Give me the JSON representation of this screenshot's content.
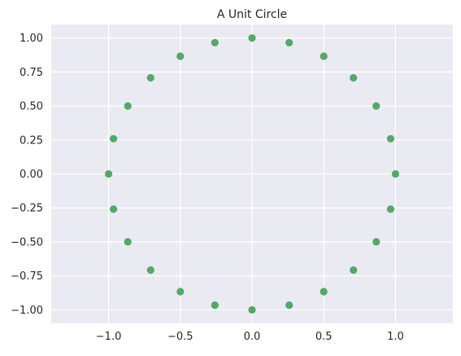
{
  "chart_data": {
    "type": "scatter",
    "title": "A Unit Circle",
    "xlabel": "",
    "ylabel": "",
    "xlim": [
      -1.4,
      1.4
    ],
    "ylim": [
      -1.1,
      1.1
    ],
    "x_ticks": [
      -1.0,
      -0.5,
      0.0,
      0.5,
      1.0
    ],
    "x_tick_labels": [
      "−1.0",
      "−0.5",
      "0.0",
      "0.5",
      "1.0"
    ],
    "y_ticks": [
      1.0,
      0.75,
      0.5,
      0.25,
      0.0,
      -0.25,
      -0.5,
      -0.75,
      -1.0
    ],
    "y_tick_labels": [
      "1.00",
      "0.75",
      "0.50",
      "0.25",
      "0.00",
      "−0.25",
      "−0.50",
      "−0.75",
      "−1.00"
    ],
    "grid": true,
    "series": [
      {
        "color": "#55a868",
        "points": [
          {
            "x": 1.0,
            "y": 0.0
          },
          {
            "x": 0.966,
            "y": 0.259
          },
          {
            "x": 0.866,
            "y": 0.5
          },
          {
            "x": 0.707,
            "y": 0.707
          },
          {
            "x": 0.5,
            "y": 0.866
          },
          {
            "x": 0.259,
            "y": 0.966
          },
          {
            "x": 0.0,
            "y": 1.0
          },
          {
            "x": -0.259,
            "y": 0.966
          },
          {
            "x": -0.5,
            "y": 0.866
          },
          {
            "x": -0.707,
            "y": 0.707
          },
          {
            "x": -0.866,
            "y": 0.5
          },
          {
            "x": -0.966,
            "y": 0.259
          },
          {
            "x": -1.0,
            "y": 0.0
          },
          {
            "x": -0.966,
            "y": -0.259
          },
          {
            "x": -0.866,
            "y": -0.5
          },
          {
            "x": -0.707,
            "y": -0.707
          },
          {
            "x": -0.5,
            "y": -0.866
          },
          {
            "x": -0.259,
            "y": -0.966
          },
          {
            "x": 0.0,
            "y": -1.0
          },
          {
            "x": 0.259,
            "y": -0.966
          },
          {
            "x": 0.5,
            "y": -0.866
          },
          {
            "x": 0.707,
            "y": -0.707
          },
          {
            "x": 0.866,
            "y": -0.5
          },
          {
            "x": 0.966,
            "y": -0.259
          }
        ]
      }
    ]
  }
}
